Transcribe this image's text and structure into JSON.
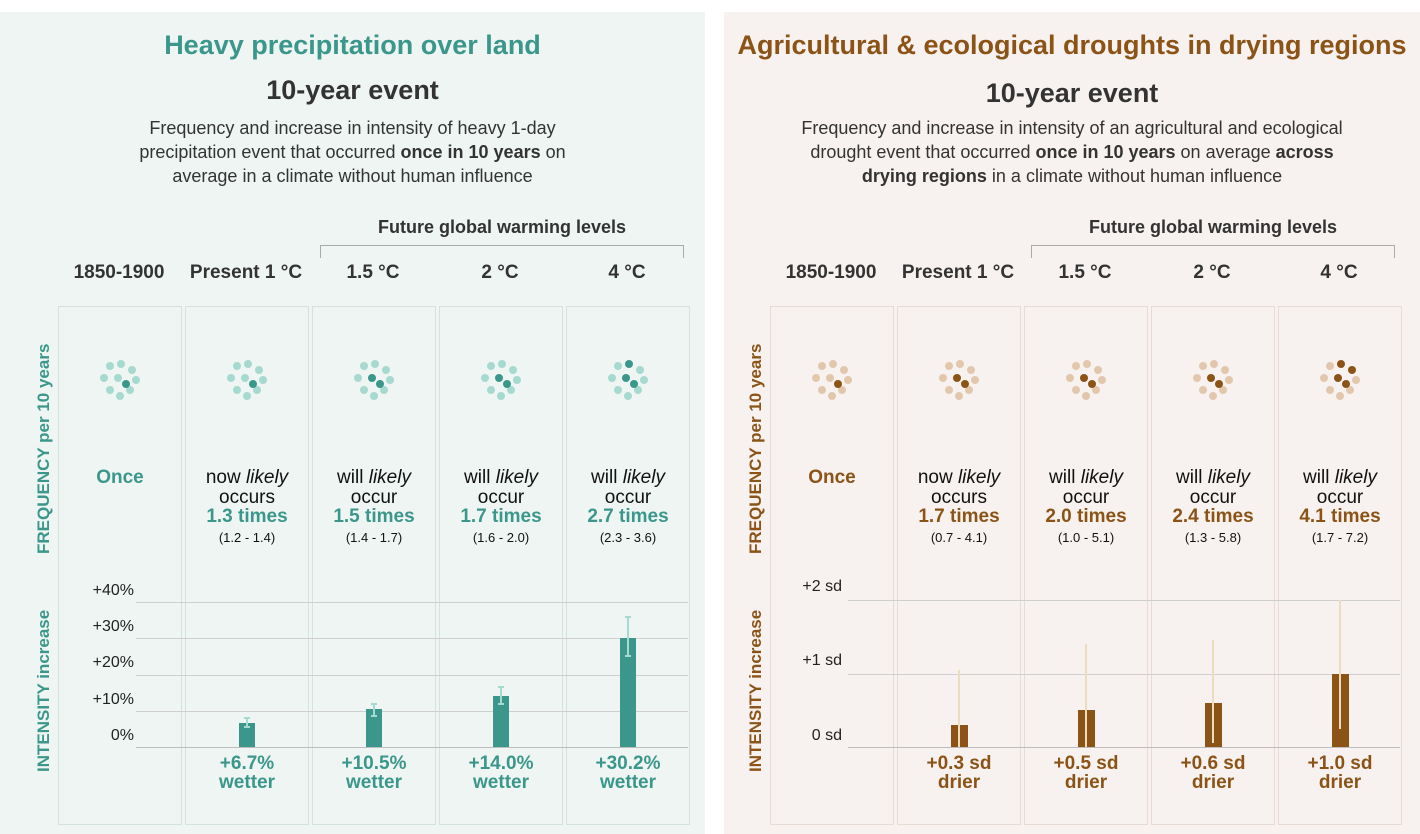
{
  "colors": {
    "teal": "#3b978b",
    "teal_light": "#a6d9d0",
    "brown": "#8c5317",
    "brown_light": "#e2c7ad"
  },
  "panels": [
    {
      "title": "Heavy precipitation over land",
      "subtitle": "10-year event",
      "desc_line1": "Frequency and increase in intensity of heavy 1-day",
      "desc_line2_a": "precipitation event that occurred ",
      "desc_line2_b": "once in 10 years",
      "desc_line2_c": " on",
      "desc_line3": "average in a climate without human influence",
      "future_label": "Future global warming levels",
      "freq_axis_a": "FREQUENCY",
      "freq_axis_b": " per 10 years",
      "int_axis_a": "INTENSITY",
      "int_axis_b": " increase",
      "columns": [
        "1850-1900",
        "Present 1 °C",
        "1.5 °C",
        "2 °C",
        "4 °C"
      ],
      "once_label": "Once",
      "freq": [
        {
          "l1": "now ",
          "l1i": "likely",
          "l2": "occurs",
          "times": "1.3 times",
          "range": "(1.2 - 1.4)"
        },
        {
          "l1": "will ",
          "l1i": "likely",
          "l2": "occur",
          "times": "1.5 times",
          "range": "(1.4 - 1.7)"
        },
        {
          "l1": "will ",
          "l1i": "likely",
          "l2": "occur",
          "times": "1.7 times",
          "range": "(1.6 - 2.0)"
        },
        {
          "l1": "will ",
          "l1i": "likely",
          "l2": "occur",
          "times": "2.7 times",
          "range": "(2.3 - 3.6)"
        }
      ],
      "intensity_ticks": [
        "+40%",
        "+30%",
        "+20%",
        "+10%",
        "0%"
      ],
      "intensity_labels": [
        {
          "value": "+6.7%",
          "word": "wetter"
        },
        {
          "value": "+10.5%",
          "word": "wetter"
        },
        {
          "value": "+14.0%",
          "word": "wetter"
        },
        {
          "value": "+30.2%",
          "word": "wetter"
        }
      ]
    },
    {
      "title": "Agricultural & ecological droughts in drying regions",
      "subtitle": "10-year event",
      "desc_line1": "Frequency and increase in intensity of an agricultural and ecological",
      "desc_line2_a": "drought event that occurred ",
      "desc_line2_b": "once in 10 years",
      "desc_line2_c": " on average ",
      "desc_line2_d": "across",
      "desc_line3_b": "drying regions",
      "desc_line3_c": " in a climate without human influence",
      "future_label": "Future global warming levels",
      "freq_axis_a": "FREQUENCY",
      "freq_axis_b": " per 10 years",
      "int_axis_a": "INTENSITY",
      "int_axis_b": " increase",
      "columns": [
        "1850-1900",
        "Present 1 °C",
        "1.5 °C",
        "2 °C",
        "4 °C"
      ],
      "once_label": "Once",
      "freq": [
        {
          "l1": "now ",
          "l1i": "likely",
          "l2": "occurs",
          "times": "1.7 times",
          "range": "(0.7 - 4.1)"
        },
        {
          "l1": "will ",
          "l1i": "likely",
          "l2": "occur",
          "times": "2.0 times",
          "range": "(1.0 - 5.1)"
        },
        {
          "l1": "will ",
          "l1i": "likely",
          "l2": "occur",
          "times": "2.4 times",
          "range": "(1.3 - 5.8)"
        },
        {
          "l1": "will ",
          "l1i": "likely",
          "l2": "occur",
          "times": "4.1 times",
          "range": "(1.7 - 7.2)"
        }
      ],
      "intensity_ticks": [
        "+2 sd",
        "+1 sd",
        "0 sd"
      ],
      "intensity_labels": [
        {
          "value": "+0.3 sd",
          "word": "drier"
        },
        {
          "value": "+0.5 sd",
          "word": "drier"
        },
        {
          "value": "+0.6 sd",
          "word": "drier"
        },
        {
          "value": "+1.0 sd",
          "word": "drier"
        }
      ]
    }
  ],
  "chart_data": [
    {
      "type": "bar",
      "title": "Heavy precipitation over land",
      "categories": [
        "1850-1900",
        "Present 1 °C",
        "1.5 °C",
        "2 °C",
        "4 °C"
      ],
      "frequency_per_10_years": [
        1,
        1.3,
        1.5,
        1.7,
        2.7
      ],
      "frequency_range": [
        null,
        [
          1.2,
          1.4
        ],
        [
          1.4,
          1.7
        ],
        [
          1.6,
          2.0
        ],
        [
          2.3,
          3.6
        ]
      ],
      "highlighted_dots": [
        1,
        1,
        2,
        2,
        3
      ],
      "values": [
        0,
        6.7,
        10.5,
        14.0,
        30.2
      ],
      "error_low": [
        null,
        5.5,
        8.5,
        12,
        25
      ],
      "error_high": [
        null,
        8,
        12,
        16.5,
        36
      ],
      "ylabel": "INTENSITY increase",
      "ylim": [
        0,
        40
      ],
      "unit": "%"
    },
    {
      "type": "bar",
      "title": "Agricultural & ecological droughts in drying regions",
      "categories": [
        "1850-1900",
        "Present 1 °C",
        "1.5 °C",
        "2 °C",
        "4 °C"
      ],
      "frequency_per_10_years": [
        1,
        1.7,
        2.0,
        2.4,
        4.1
      ],
      "frequency_range": [
        null,
        [
          0.7,
          4.1
        ],
        [
          1.0,
          5.1
        ],
        [
          1.3,
          5.8
        ],
        [
          1.7,
          7.2
        ]
      ],
      "highlighted_dots": [
        1,
        2,
        2,
        2,
        4
      ],
      "values": [
        0,
        0.3,
        0.5,
        0.6,
        1.0
      ],
      "error_low": [
        null,
        -0.2,
        -0.1,
        0.05,
        0.25
      ],
      "error_high": [
        null,
        1.05,
        1.4,
        1.45,
        2.0
      ],
      "ylabel": "INTENSITY increase",
      "ylim": [
        0,
        2
      ],
      "unit": "sd"
    }
  ]
}
